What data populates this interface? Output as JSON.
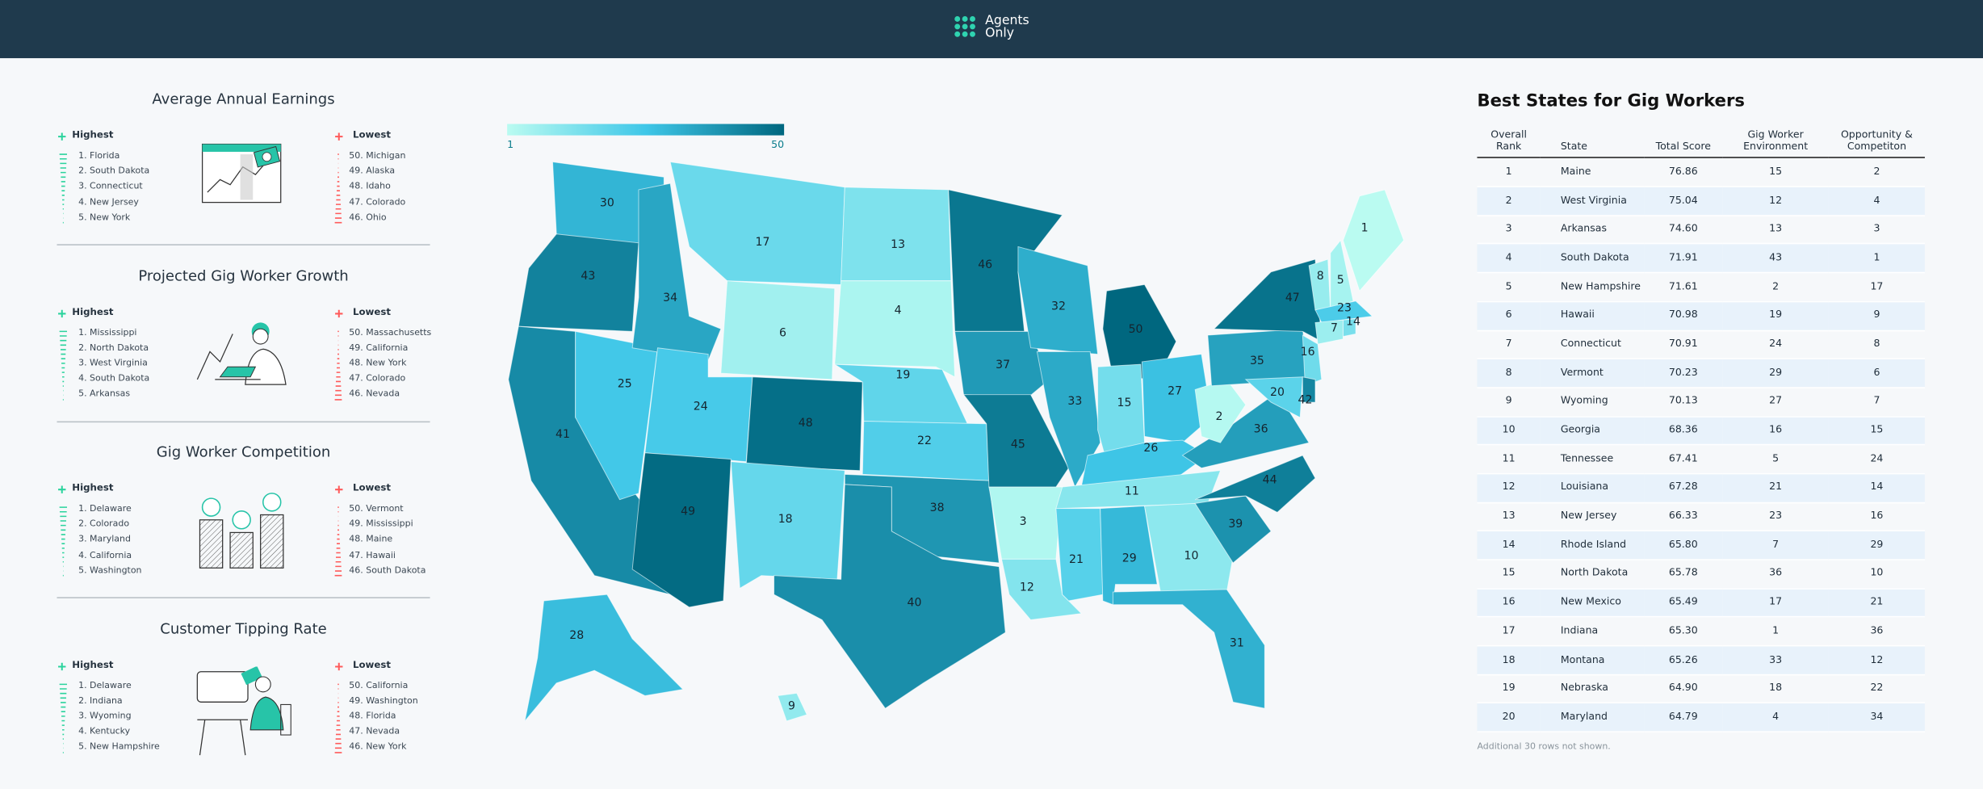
{
  "header": {
    "brand": [
      "Agents",
      "Only"
    ]
  },
  "panels": [
    {
      "title": "Average Annual Earnings",
      "highest_label": "Highest",
      "lowest_label": "Lowest",
      "highest": [
        "1. Florida",
        "2. South Dakota",
        "3. Connecticut",
        "4. New Jersey",
        "5. New York"
      ],
      "lowest": [
        "50. Michigan",
        "49. Alaska",
        "48. Idaho",
        "47. Colorado",
        "46. Ohio"
      ]
    },
    {
      "title": "Projected Gig Worker Growth",
      "highest_label": "Highest",
      "lowest_label": "Lowest",
      "highest": [
        "1. Mississippi",
        "2. North Dakota",
        "3. West Virginia",
        "4. South Dakota",
        "5. Arkansas"
      ],
      "lowest": [
        "50. Massachusetts",
        "49. California",
        "48. New York",
        "47. Colorado",
        "46. Nevada"
      ]
    },
    {
      "title": "Gig Worker Competition",
      "highest_label": "Highest",
      "lowest_label": "Lowest",
      "highest": [
        "1. Delaware",
        "2. Colorado",
        "3. Maryland",
        "4. California",
        "5. Washington"
      ],
      "lowest": [
        "50. Vermont",
        "49. Mississippi",
        "48. Maine",
        "47. Hawaii",
        "46. South Dakota"
      ]
    },
    {
      "title": "Customer Tipping Rate",
      "highest_label": "Highest",
      "lowest_label": "Lowest",
      "highest": [
        "1. Delaware",
        "2. Indiana",
        "3. Wyoming",
        "4. Kentucky",
        "5. New Hampshire"
      ],
      "lowest": [
        "50. California",
        "49. Washington",
        "48. Florida",
        "47. Nevada",
        "46. New York"
      ]
    }
  ],
  "map": {
    "legend": {
      "min": 1,
      "max": 50
    },
    "values": [
      30,
      43,
      41,
      25,
      34,
      17,
      6,
      24,
      49,
      48,
      18,
      13,
      4,
      19,
      22,
      38,
      40,
      46,
      37,
      45,
      3,
      12,
      32,
      33,
      50,
      15,
      27,
      26,
      11,
      21,
      29,
      10,
      31,
      39,
      44,
      36,
      2,
      35,
      47,
      8,
      5,
      1,
      23,
      7,
      14,
      16,
      20,
      42,
      28,
      9
    ]
  },
  "table": {
    "title": "Best States for Gig Workers",
    "headers": [
      "Overall Rank",
      "State",
      "Total Score",
      "Gig Worker Environment",
      "Opportunity & Competiton"
    ],
    "rows": [
      [
        "1",
        "Maine",
        "76.86",
        "15",
        "2"
      ],
      [
        "2",
        "West Virginia",
        "75.04",
        "12",
        "4"
      ],
      [
        "3",
        "Arkansas",
        "74.60",
        "13",
        "3"
      ],
      [
        "4",
        "South Dakota",
        "71.91",
        "43",
        "1"
      ],
      [
        "5",
        "New Hampshire",
        "71.61",
        "2",
        "17"
      ],
      [
        "6",
        "Hawaii",
        "70.98",
        "19",
        "9"
      ],
      [
        "7",
        "Connecticut",
        "70.91",
        "24",
        "8"
      ],
      [
        "8",
        "Vermont",
        "70.23",
        "29",
        "6"
      ],
      [
        "9",
        "Wyoming",
        "70.13",
        "27",
        "7"
      ],
      [
        "10",
        "Georgia",
        "68.36",
        "16",
        "15"
      ],
      [
        "11",
        "Tennessee",
        "67.41",
        "5",
        "24"
      ],
      [
        "12",
        "Louisiana",
        "67.28",
        "21",
        "14"
      ],
      [
        "13",
        "New Jersey",
        "66.33",
        "23",
        "16"
      ],
      [
        "14",
        "Rhode Island",
        "65.80",
        "7",
        "29"
      ],
      [
        "15",
        "North Dakota",
        "65.78",
        "36",
        "10"
      ],
      [
        "16",
        "New Mexico",
        "65.49",
        "17",
        "21"
      ],
      [
        "17",
        "Indiana",
        "65.30",
        "1",
        "36"
      ],
      [
        "18",
        "Montana",
        "65.26",
        "33",
        "12"
      ],
      [
        "19",
        "Nebraska",
        "64.90",
        "18",
        "22"
      ],
      [
        "20",
        "Maryland",
        "64.79",
        "4",
        "34"
      ]
    ],
    "note": "Additional 30 rows not shown."
  }
}
